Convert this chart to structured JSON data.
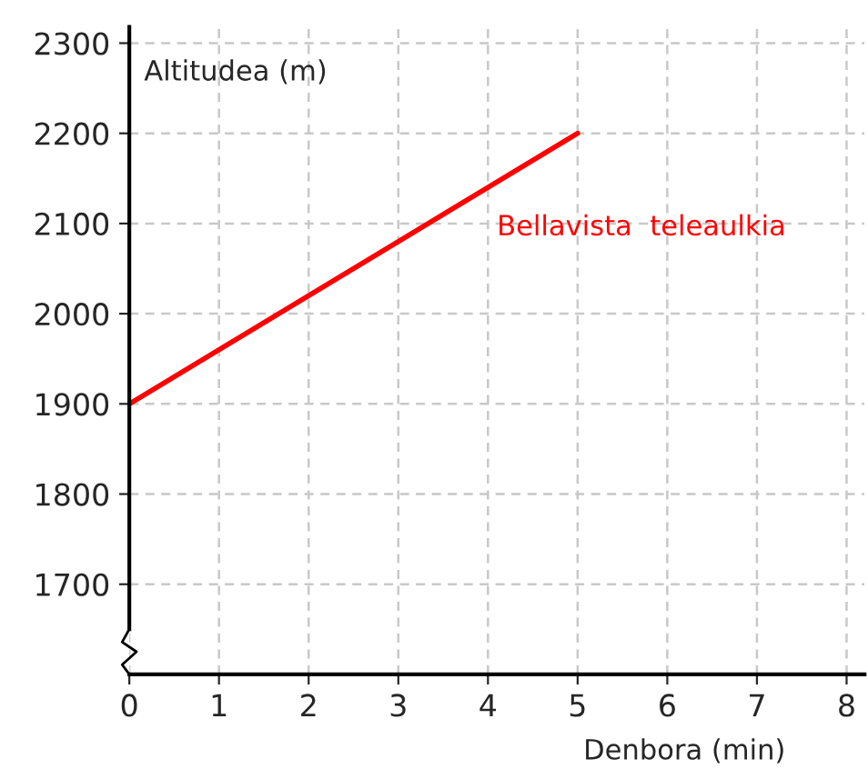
{
  "chart_data": {
    "type": "line",
    "xlabel": "Denbora (min)",
    "ylabel": "Altitudea (m)",
    "x": [
      0,
      5
    ],
    "series": [
      {
        "name": "Bellavista  teleaulkia",
        "color": "#ff0000",
        "values": [
          1900,
          2200
        ]
      }
    ],
    "xlim": [
      0,
      8.2
    ],
    "xticks": [
      0,
      1,
      2,
      3,
      4,
      5,
      6,
      7,
      8
    ],
    "ylim": [
      1600,
      2318
    ],
    "yticks": [
      1700,
      1800,
      1900,
      2000,
      2100,
      2200,
      2300
    ],
    "grid": true,
    "legend": false,
    "marker": "none",
    "line_style": "solid"
  }
}
